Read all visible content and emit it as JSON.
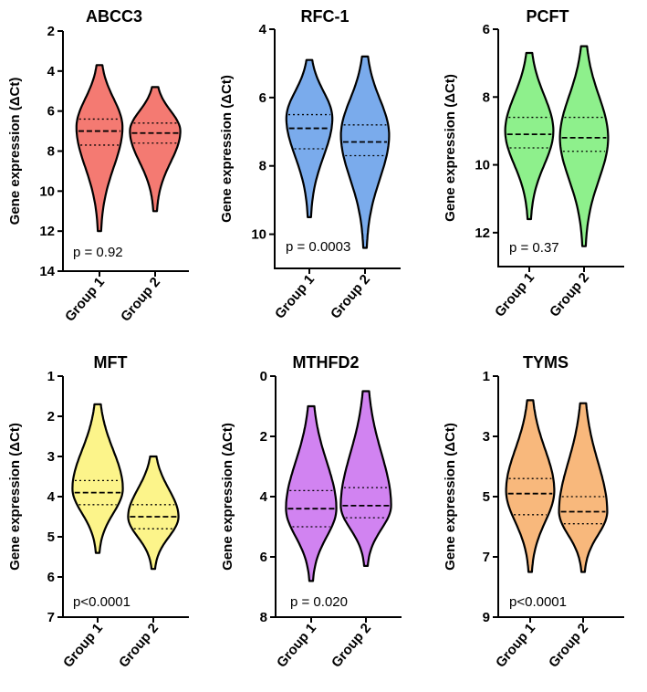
{
  "chart_data": [
    {
      "type": "violin",
      "title": "ABCC3",
      "ylabel": "Gene expression (ΔCt)",
      "ylim": [
        2,
        14
      ],
      "inverted": true,
      "yticks": [
        "2",
        "4",
        "6",
        "8",
        "10",
        "12",
        "14"
      ],
      "categories": [
        "Group 1",
        "Group 2"
      ],
      "annotation": "p = 0.92",
      "color": "#f47a72",
      "series": [
        {
          "name": "Group 1",
          "min": 3.7,
          "max": 12.0,
          "q1": 6.4,
          "median": 7.0,
          "q3": 7.7,
          "peak": 6.8,
          "width": 0.42
        },
        {
          "name": "Group 2",
          "min": 4.8,
          "max": 11.0,
          "q1": 6.6,
          "median": 7.1,
          "q3": 7.6,
          "peak": 7.0,
          "width": 0.46
        }
      ]
    },
    {
      "type": "violin",
      "title": "RFC-1",
      "ylabel": "Gene expression (ΔCt)",
      "ylim": [
        4,
        11
      ],
      "inverted": true,
      "yticks": [
        "4",
        "6",
        "8",
        "10"
      ],
      "categories": [
        "Group 1",
        "Group 2"
      ],
      "annotation": "p = 0.0003",
      "color": "#7aabec",
      "series": [
        {
          "name": "Group 1",
          "min": 4.9,
          "max": 9.5,
          "q1": 6.5,
          "median": 6.9,
          "q3": 7.5,
          "peak": 6.6,
          "width": 0.42
        },
        {
          "name": "Group 2",
          "min": 4.8,
          "max": 10.4,
          "q1": 6.8,
          "median": 7.3,
          "q3": 7.7,
          "peak": 7.1,
          "width": 0.44
        }
      ]
    },
    {
      "type": "violin",
      "title": "PCFT",
      "ylabel": "Gene expression (ΔCt)",
      "ylim": [
        6,
        13
      ],
      "inverted": true,
      "yticks": [
        "6",
        "8",
        "10",
        "12"
      ],
      "categories": [
        "Group 1",
        "Group 2"
      ],
      "annotation": "p = 0.37",
      "color": "#8ef08c",
      "series": [
        {
          "name": "Group 1",
          "min": 6.7,
          "max": 11.6,
          "q1": 8.6,
          "median": 9.1,
          "q3": 9.5,
          "peak": 9.0,
          "width": 0.44
        },
        {
          "name": "Group 2",
          "min": 6.5,
          "max": 12.4,
          "q1": 8.6,
          "median": 9.2,
          "q3": 9.6,
          "peak": 9.2,
          "width": 0.44
        }
      ]
    },
    {
      "type": "violin",
      "title": "MFT",
      "ylabel": "Gene expression (ΔCt)",
      "ylim": [
        1,
        7
      ],
      "inverted": true,
      "yticks": [
        "1",
        "2",
        "3",
        "4",
        "5",
        "6",
        "7"
      ],
      "categories": [
        "Group 1",
        "Group 2"
      ],
      "annotation": "p<0.0001",
      "color": "#fcf48a",
      "series": [
        {
          "name": "Group 1",
          "min": 1.7,
          "max": 5.4,
          "q1": 3.6,
          "median": 3.9,
          "q3": 4.2,
          "peak": 3.8,
          "width": 0.46
        },
        {
          "name": "Group 2",
          "min": 3.0,
          "max": 5.8,
          "q1": 4.2,
          "median": 4.5,
          "q3": 4.8,
          "peak": 4.5,
          "width": 0.46
        }
      ]
    },
    {
      "type": "violin",
      "title": "MTHFD2",
      "ylabel": "Gene expression (ΔCt)",
      "ylim": [
        0,
        8
      ],
      "inverted": true,
      "yticks": [
        "0",
        "2",
        "4",
        "6",
        "8"
      ],
      "categories": [
        "Group 1",
        "Group 2"
      ],
      "annotation": "p = 0.020",
      "color": "#d183f1",
      "series": [
        {
          "name": "Group 1",
          "min": 1.0,
          "max": 6.8,
          "q1": 3.8,
          "median": 4.4,
          "q3": 5.0,
          "peak": 4.4,
          "width": 0.46
        },
        {
          "name": "Group 2",
          "min": 0.5,
          "max": 6.3,
          "q1": 3.7,
          "median": 4.3,
          "q3": 4.7,
          "peak": 4.3,
          "width": 0.46
        }
      ]
    },
    {
      "type": "violin",
      "title": "TYMS",
      "ylabel": "Gene expression (ΔCt)",
      "ylim": [
        1,
        9
      ],
      "inverted": true,
      "yticks": [
        "1",
        "3",
        "5",
        "7",
        "9"
      ],
      "categories": [
        "Group 1",
        "Group 2"
      ],
      "annotation": "p<0.0001",
      "color": "#f8b87c",
      "series": [
        {
          "name": "Group 1",
          "min": 1.8,
          "max": 7.5,
          "q1": 4.4,
          "median": 4.9,
          "q3": 5.6,
          "peak": 4.8,
          "width": 0.44
        },
        {
          "name": "Group 2",
          "min": 1.9,
          "max": 7.5,
          "q1": 5.0,
          "median": 5.5,
          "q3": 5.9,
          "peak": 5.5,
          "width": 0.44
        }
      ]
    }
  ]
}
